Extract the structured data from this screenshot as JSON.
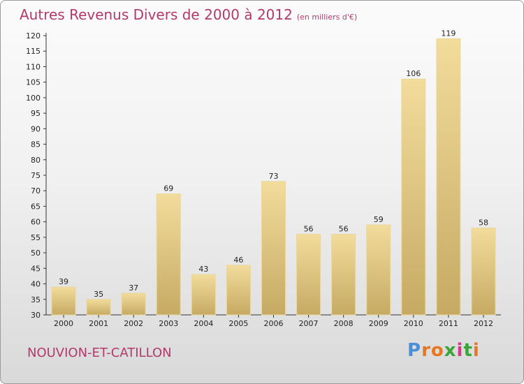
{
  "chart_data": {
    "type": "bar",
    "title": "Autres Revenus Divers de 2000 à 2012",
    "subtitle": "(en milliers d'€)",
    "categories": [
      "2000",
      "2001",
      "2002",
      "2003",
      "2004",
      "2005",
      "2006",
      "2007",
      "2008",
      "2009",
      "2010",
      "2011",
      "2012"
    ],
    "values": [
      39,
      35,
      37,
      69,
      43,
      46,
      73,
      56,
      56,
      59,
      106,
      119,
      58
    ],
    "ylim": [
      30,
      120
    ],
    "yticks": [
      30,
      35,
      40,
      45,
      50,
      55,
      60,
      65,
      70,
      75,
      80,
      85,
      90,
      95,
      100,
      105,
      110,
      115,
      120
    ],
    "grid": false,
    "bar_color": "#dcc17e"
  },
  "footer": {
    "location": "NOUVION-ET-CATILLON",
    "brand_letters": [
      "P",
      "r",
      "o",
      "x",
      "i",
      "t",
      "i"
    ],
    "brand_colors": [
      "#4a90d9",
      "#e87722",
      "#e87722",
      "#3aa53a",
      "#d63b8a",
      "#3aa53a",
      "#e87722"
    ]
  }
}
